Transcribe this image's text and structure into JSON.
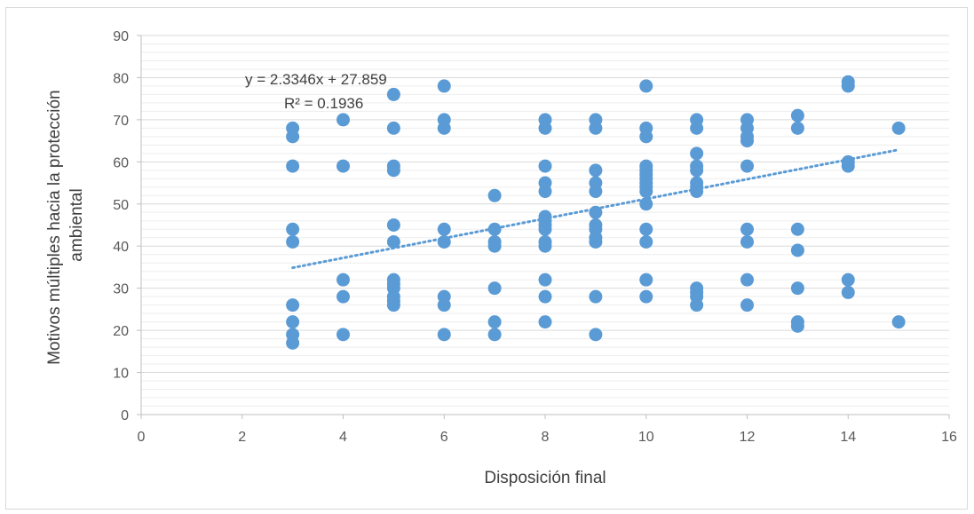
{
  "chart_data": {
    "type": "scatter",
    "title": "",
    "xlabel": "Disposición final",
    "ylabel_lines": [
      "Motivos múltiples hacia la protección",
      "ambiental"
    ],
    "xlim": [
      0,
      16
    ],
    "ylim": [
      0,
      90
    ],
    "x_ticks": [
      "0",
      "2",
      "4",
      "6",
      "8",
      "10",
      "12",
      "14",
      "16"
    ],
    "y_ticks": [
      "0",
      "10",
      "20",
      "30",
      "40",
      "50",
      "60",
      "70",
      "80",
      "90"
    ],
    "grid": true,
    "legend": "none",
    "marker_color": "#5b9bd5",
    "trendline": {
      "type": "linear",
      "slope": 2.3346,
      "intercept": 27.859,
      "x_range": [
        3,
        15
      ],
      "equation": "y = 2.3346x + 27.859",
      "r_squared": "R² = 0.1936",
      "color": "#5b9bd5"
    },
    "points": [
      [
        3,
        68
      ],
      [
        3,
        66
      ],
      [
        3,
        59
      ],
      [
        3,
        44
      ],
      [
        3,
        41
      ],
      [
        3,
        26
      ],
      [
        3,
        22
      ],
      [
        3,
        19
      ],
      [
        3,
        17
      ],
      [
        4,
        70
      ],
      [
        4,
        59
      ],
      [
        4,
        32
      ],
      [
        4,
        28
      ],
      [
        4,
        19
      ],
      [
        5,
        76
      ],
      [
        5,
        68
      ],
      [
        5,
        59
      ],
      [
        5,
        58
      ],
      [
        5,
        45
      ],
      [
        5,
        41
      ],
      [
        5,
        32
      ],
      [
        5,
        31
      ],
      [
        5,
        30
      ],
      [
        5,
        28
      ],
      [
        5,
        27
      ],
      [
        5,
        26
      ],
      [
        6,
        78
      ],
      [
        6,
        70
      ],
      [
        6,
        68
      ],
      [
        6,
        44
      ],
      [
        6,
        41
      ],
      [
        6,
        28
      ],
      [
        6,
        26
      ],
      [
        6,
        19
      ],
      [
        7,
        52
      ],
      [
        7,
        44
      ],
      [
        7,
        41
      ],
      [
        7,
        40
      ],
      [
        7,
        30
      ],
      [
        7,
        22
      ],
      [
        7,
        19
      ],
      [
        8,
        70
      ],
      [
        8,
        68
      ],
      [
        8,
        59
      ],
      [
        8,
        55
      ],
      [
        8,
        53
      ],
      [
        8,
        47
      ],
      [
        8,
        46
      ],
      [
        8,
        45
      ],
      [
        8,
        44
      ],
      [
        8,
        41
      ],
      [
        8,
        40
      ],
      [
        8,
        32
      ],
      [
        8,
        28
      ],
      [
        8,
        22
      ],
      [
        9,
        70
      ],
      [
        9,
        68
      ],
      [
        9,
        58
      ],
      [
        9,
        55
      ],
      [
        9,
        53
      ],
      [
        9,
        48
      ],
      [
        9,
        45
      ],
      [
        9,
        44
      ],
      [
        9,
        42
      ],
      [
        9,
        41
      ],
      [
        9,
        28
      ],
      [
        9,
        19
      ],
      [
        10,
        78
      ],
      [
        10,
        68
      ],
      [
        10,
        66
      ],
      [
        10,
        59
      ],
      [
        10,
        58
      ],
      [
        10,
        57
      ],
      [
        10,
        56
      ],
      [
        10,
        55
      ],
      [
        10,
        54
      ],
      [
        10,
        53
      ],
      [
        10,
        50
      ],
      [
        10,
        44
      ],
      [
        10,
        41
      ],
      [
        10,
        32
      ],
      [
        10,
        28
      ],
      [
        11,
        70
      ],
      [
        11,
        68
      ],
      [
        11,
        62
      ],
      [
        11,
        59
      ],
      [
        11,
        58
      ],
      [
        11,
        55
      ],
      [
        11,
        54
      ],
      [
        11,
        53
      ],
      [
        11,
        30
      ],
      [
        11,
        29
      ],
      [
        11,
        28
      ],
      [
        11,
        26
      ],
      [
        12,
        70
      ],
      [
        12,
        68
      ],
      [
        12,
        66
      ],
      [
        12,
        65
      ],
      [
        12,
        59
      ],
      [
        12,
        44
      ],
      [
        12,
        41
      ],
      [
        12,
        32
      ],
      [
        12,
        26
      ],
      [
        13,
        71
      ],
      [
        13,
        68
      ],
      [
        13,
        44
      ],
      [
        13,
        39
      ],
      [
        13,
        30
      ],
      [
        13,
        22
      ],
      [
        13,
        21
      ],
      [
        14,
        79
      ],
      [
        14,
        78
      ],
      [
        14,
        60
      ],
      [
        14,
        59
      ],
      [
        14,
        32
      ],
      [
        14,
        29
      ],
      [
        15,
        68
      ],
      [
        15,
        22
      ]
    ]
  }
}
